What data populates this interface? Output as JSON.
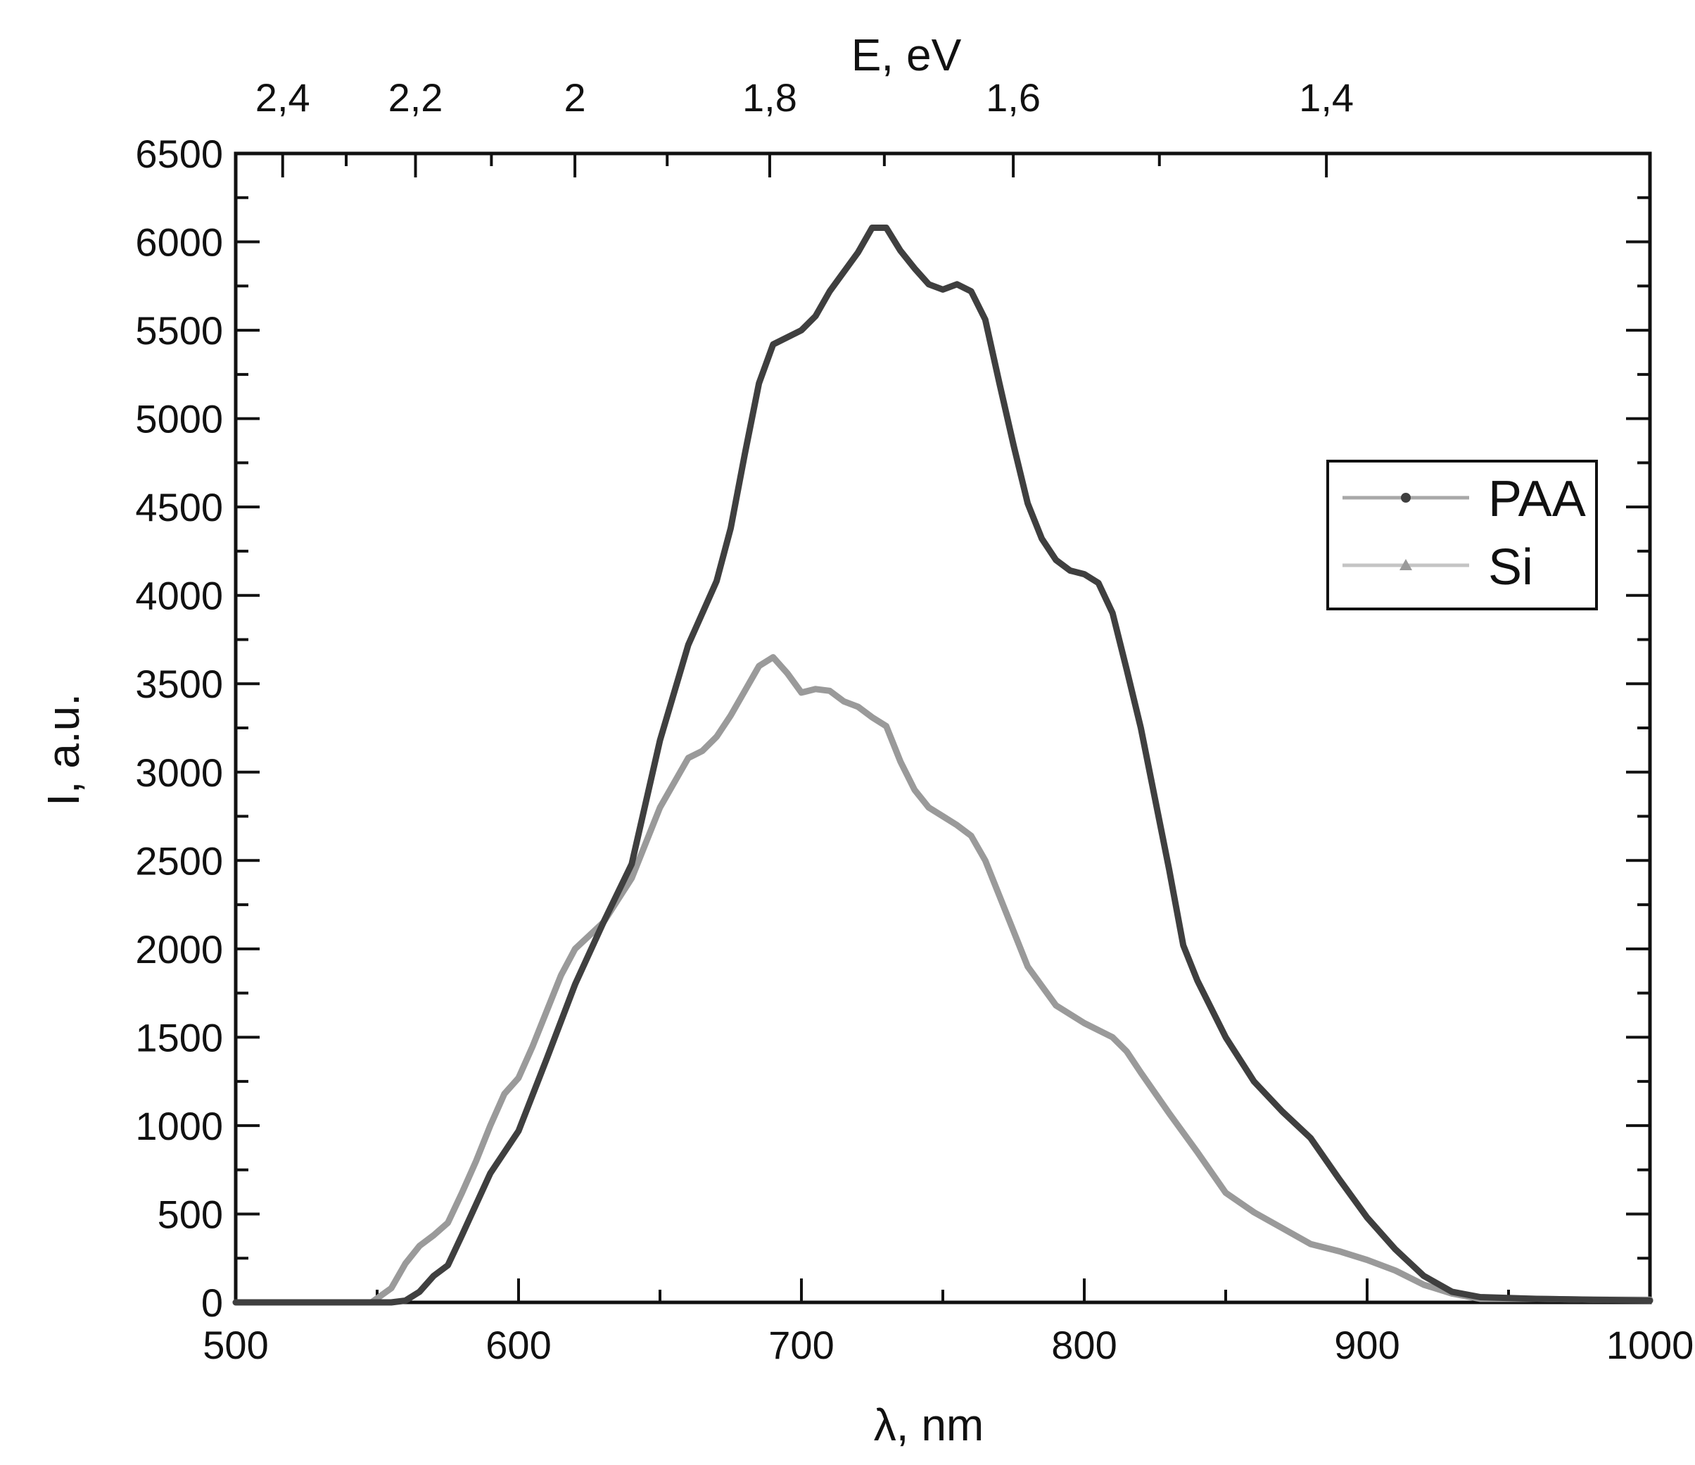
{
  "chart_data": {
    "type": "line",
    "title": "",
    "xlabel": "λ, nm",
    "ylabel": "I, a.u.",
    "top_xlabel": "E, eV",
    "xlim": [
      500,
      1000
    ],
    "ylim": [
      0,
      6500
    ],
    "x_ticks": [
      "500",
      "600",
      "700",
      "800",
      "900",
      "1000"
    ],
    "y_ticks": [
      "0",
      "500",
      "1000",
      "1500",
      "2000",
      "2500",
      "3000",
      "3500",
      "4000",
      "4500",
      "5000",
      "5500",
      "6000",
      "6500"
    ],
    "top_ticks": [
      {
        "label": "2,4",
        "energy_eV": 2.4
      },
      {
        "label": "2,2",
        "energy_eV": 2.2
      },
      {
        "label": "2",
        "energy_eV": 2.0
      },
      {
        "label": "1,8",
        "energy_eV": 1.8
      },
      {
        "label": "1,6",
        "energy_eV": 1.6
      },
      {
        "label": "1,4",
        "energy_eV": 1.4
      }
    ],
    "legend_position": "right",
    "grid": false,
    "series": [
      {
        "name": "PAA",
        "color": "#3f3f3f",
        "marker": "circle",
        "x": [
          500,
          555,
          560,
          565,
          570,
          575,
          580,
          590,
          600,
          610,
          620,
          630,
          640,
          650,
          660,
          670,
          675,
          680,
          685,
          690,
          700,
          705,
          710,
          715,
          720,
          725,
          730,
          735,
          740,
          745,
          750,
          755,
          760,
          765,
          770,
          775,
          780,
          785,
          790,
          795,
          800,
          805,
          810,
          815,
          820,
          825,
          830,
          835,
          840,
          850,
          860,
          870,
          880,
          890,
          900,
          910,
          920,
          930,
          940,
          960,
          980,
          1000
        ],
        "y": [
          0,
          0,
          10,
          60,
          150,
          210,
          380,
          730,
          970,
          1380,
          1800,
          2150,
          2480,
          3180,
          3720,
          4080,
          4380,
          4800,
          5200,
          5420,
          5500,
          5580,
          5720,
          5830,
          5940,
          6080,
          6080,
          5950,
          5850,
          5760,
          5730,
          5760,
          5720,
          5560,
          5200,
          4850,
          4520,
          4320,
          4200,
          4140,
          4120,
          4070,
          3900,
          3580,
          3250,
          2850,
          2450,
          2020,
          1820,
          1500,
          1250,
          1080,
          930,
          700,
          480,
          300,
          150,
          60,
          30,
          20,
          15,
          10
        ]
      },
      {
        "name": "Si",
        "color": "#9a9a9a",
        "marker": "triangle",
        "x": [
          500,
          548,
          555,
          560,
          565,
          570,
          575,
          580,
          585,
          590,
          595,
          600,
          605,
          610,
          615,
          620,
          630,
          640,
          650,
          660,
          665,
          670,
          675,
          680,
          685,
          690,
          695,
          700,
          705,
          710,
          715,
          720,
          725,
          730,
          735,
          740,
          745,
          750,
          755,
          760,
          765,
          770,
          775,
          780,
          790,
          800,
          810,
          815,
          820,
          830,
          840,
          850,
          860,
          870,
          880,
          890,
          900,
          910,
          920,
          930,
          940,
          960,
          980,
          1000
        ],
        "y": [
          0,
          0,
          80,
          220,
          320,
          380,
          450,
          620,
          800,
          1000,
          1180,
          1270,
          1450,
          1650,
          1850,
          2000,
          2150,
          2400,
          2800,
          3080,
          3120,
          3200,
          3320,
          3460,
          3600,
          3650,
          3560,
          3450,
          3470,
          3460,
          3400,
          3370,
          3310,
          3260,
          3060,
          2900,
          2800,
          2750,
          2700,
          2640,
          2500,
          2300,
          2100,
          1900,
          1680,
          1580,
          1500,
          1420,
          1300,
          1070,
          850,
          620,
          510,
          420,
          330,
          290,
          240,
          180,
          100,
          50,
          20,
          20,
          15,
          15
        ]
      }
    ]
  }
}
